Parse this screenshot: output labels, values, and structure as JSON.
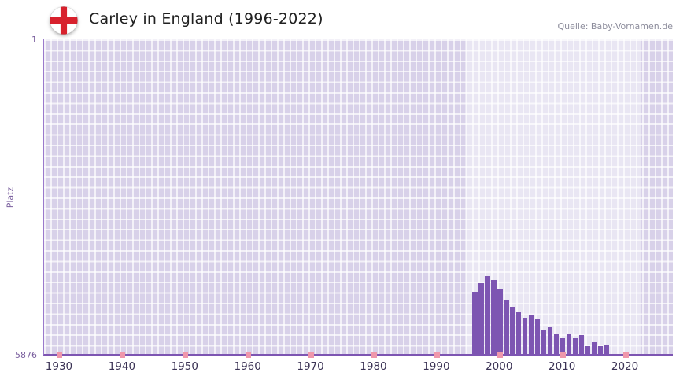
{
  "header": {
    "title": "Carley in England (1996-2022)",
    "source": "Quelle: Baby-Vornamen.de"
  },
  "chart_data": {
    "type": "bar",
    "title": "Carley in England (1996-2022)",
    "xlabel": "",
    "ylabel": "Platz",
    "y_axis": {
      "min": 1,
      "max": 5876,
      "inverted": true,
      "top_label": "1",
      "bottom_label": "5876"
    },
    "x_range": [
      1927.5,
      2027.5
    ],
    "x_ticks": [
      1930,
      1940,
      1950,
      1960,
      1970,
      1980,
      1990,
      2000,
      2010,
      2020
    ],
    "highlight_region": {
      "start": 1994.5,
      "end": 2022.5
    },
    "grid": true,
    "legend": false,
    "series": [
      {
        "name": "Platz",
        "x": [
          1996,
          1997,
          1998,
          1999,
          2000,
          2001,
          2002,
          2003,
          2004,
          2005,
          2006,
          2007,
          2008,
          2009,
          2010,
          2011,
          2012,
          2013,
          2014,
          2015,
          2016,
          2017
        ],
        "values": [
          4710,
          4560,
          4420,
          4490,
          4650,
          4870,
          5000,
          5090,
          5200,
          5160,
          5230,
          5440,
          5370,
          5510,
          5580,
          5510,
          5580,
          5530,
          5730,
          5660,
          5730,
          5700
        ]
      }
    ],
    "colors": {
      "bar": "#7d55b2",
      "plot_background": "#d8d1e9",
      "grid_line": "#ffffff",
      "highlight_overlay": "rgba(255,255,255,0.45)",
      "axis_line": "#7d55b2",
      "tick_mark": "#ef97ab",
      "x_label": "#3b3355",
      "y_label": "#7a5f9e",
      "title": "#202020",
      "source": "#8d8d9c"
    }
  }
}
